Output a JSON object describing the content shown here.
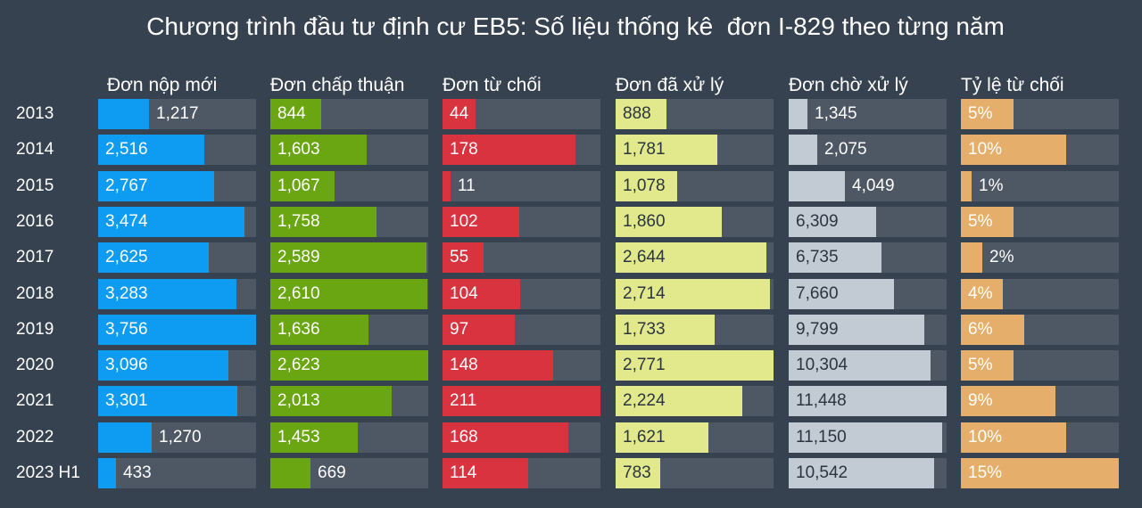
{
  "chart_data": {
    "type": "table",
    "title": "Chương trình đầu tư định cư EB5: Số liệu thống kê  đơn I-829 theo từng năm",
    "categories": [
      "2013",
      "2014",
      "2015",
      "2016",
      "2017",
      "2018",
      "2019",
      "2020",
      "2021",
      "2022",
      "2023 H1"
    ],
    "series": [
      {
        "key": "filed",
        "name": "Đơn nộp mới",
        "color": "#0d9cf2",
        "text_inside": "#ffffff",
        "text_outside": "#ffffff",
        "max": 3756,
        "values": [
          1217,
          2516,
          2767,
          3474,
          2625,
          3283,
          3756,
          3096,
          3301,
          1270,
          433
        ],
        "labels": [
          "1,217",
          "2,516",
          "2,767",
          "3,474",
          "2,625",
          "3,283",
          "3,756",
          "3,096",
          "3,301",
          "1,270",
          "433"
        ]
      },
      {
        "key": "approved",
        "name": "Đơn chấp thuận",
        "color": "#6aa512",
        "text_inside": "#ffffff",
        "text_outside": "#ffffff",
        "max": 2623,
        "values": [
          844,
          1603,
          1067,
          1758,
          2589,
          2610,
          1636,
          2623,
          2013,
          1453,
          669
        ],
        "labels": [
          "844",
          "1,603",
          "1,067",
          "1,758",
          "2,589",
          "2,610",
          "1,636",
          "2,623",
          "2,013",
          "1,453",
          "669"
        ]
      },
      {
        "key": "denied",
        "name": "Đơn từ chối",
        "color": "#d9333f",
        "text_inside": "#ffffff",
        "text_outside": "#ffffff",
        "max": 211,
        "values": [
          44,
          178,
          11,
          102,
          55,
          104,
          97,
          148,
          211,
          168,
          114
        ],
        "labels": [
          "44",
          "178",
          "11",
          "102",
          "55",
          "104",
          "97",
          "148",
          "211",
          "168",
          "114"
        ]
      },
      {
        "key": "processed",
        "name": "Đơn đã xử lý",
        "color": "#e1e98c",
        "text_inside": "#2b3440",
        "text_outside": "#ffffff",
        "max": 2771,
        "values": [
          888,
          1781,
          1078,
          1860,
          2644,
          2714,
          1733,
          2771,
          2224,
          1621,
          783
        ],
        "labels": [
          "888",
          "1,781",
          "1,078",
          "1,860",
          "2,644",
          "2,714",
          "1,733",
          "2,771",
          "2,224",
          "1,621",
          "783"
        ]
      },
      {
        "key": "pending",
        "name": "Đơn chờ xử lý",
        "color": "#c2cbd3",
        "text_inside": "#2b3440",
        "text_outside": "#ffffff",
        "max": 11448,
        "values": [
          1345,
          2075,
          4049,
          6309,
          6735,
          7660,
          9799,
          10304,
          11448,
          11150,
          10542
        ],
        "labels": [
          "1,345",
          "2,075",
          "4,049",
          "6,309",
          "6,735",
          "7,660",
          "9,799",
          "10,304",
          "11,448",
          "11,150",
          "10,542"
        ]
      },
      {
        "key": "denial_rate",
        "name": "Tỷ lệ từ chối",
        "color": "#e5ae6b",
        "text_inside": "#ffffff",
        "text_outside": "#ffffff",
        "max": 15,
        "values": [
          5,
          10,
          1,
          5,
          2,
          4,
          6,
          5,
          9,
          10,
          15
        ],
        "labels": [
          "5%",
          "10%",
          "1%",
          "5%",
          "2%",
          "4%",
          "6%",
          "5%",
          "9%",
          "10%",
          "15%"
        ]
      }
    ]
  }
}
